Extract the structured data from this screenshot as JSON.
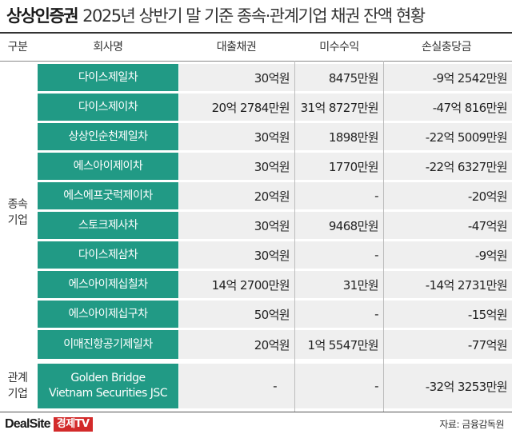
{
  "title": {
    "brand": "상상인증권",
    "rest": "2025년 상반기 말 기준 종속·관계기업 채권 잔액 현황"
  },
  "headers": {
    "category": "구분",
    "company": "회사명",
    "loan": "대출채권",
    "interest": "미수수익",
    "allowance": "손실충당금"
  },
  "groups": {
    "subsidiary": [
      "종속",
      "기업"
    ],
    "affiliate": [
      "관계",
      "기업"
    ]
  },
  "rows": [
    {
      "name": "다이스제일차",
      "loan": "30억원",
      "interest": "8475만원",
      "allowance": "-9억 2542만원"
    },
    {
      "name": "다이스제이차",
      "loan": "20억 2784만원",
      "interest": "31억 8727만원",
      "allowance": "-47억 816만원"
    },
    {
      "name": "상상인순천제일차",
      "loan": "30억원",
      "interest": "1898만원",
      "allowance": "-22억 5009만원"
    },
    {
      "name": "에스아이제이차",
      "loan": "30억원",
      "interest": "1770만원",
      "allowance": "-22억 6327만원"
    },
    {
      "name": "에스에프굿럭제이차",
      "loan": "20억원",
      "interest": "-",
      "allowance": "-20억원"
    },
    {
      "name": "스토크제사차",
      "loan": "30억원",
      "interest": "9468만원",
      "allowance": "-47억원"
    },
    {
      "name": "다이스제삼차",
      "loan": "30억원",
      "interest": "-",
      "allowance": "-9억원"
    },
    {
      "name": "에스아이제십칠차",
      "loan": "14억 2700만원",
      "interest": "31만원",
      "allowance": "-14억 2731만원"
    },
    {
      "name": "에스아이제십구차",
      "loan": "50억원",
      "interest": "-",
      "allowance": "-15억원"
    },
    {
      "name": "이매진항공기제일차",
      "loan": "20억원",
      "interest": "1억 5547만원",
      "allowance": "-77억원"
    },
    {
      "name_lines": [
        "Golden Bridge",
        "Vietnam Securities JSC"
      ],
      "loan": "-",
      "interest": "-",
      "allowance": "-32억 3253만원"
    }
  ],
  "footer": {
    "logo_main": "DealSite",
    "logo_tv": "경제TV",
    "source": "자료: 금융감독원"
  },
  "colors": {
    "name_bg": "#219a85",
    "cell_bg": "#efefef",
    "logo_tv_bg": "#d32a2a"
  }
}
